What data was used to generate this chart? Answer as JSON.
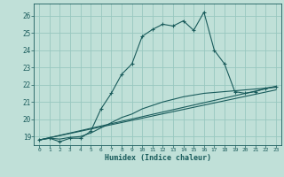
{
  "title": "",
  "xlabel": "Humidex (Indice chaleur)",
  "background_color": "#c0e0d8",
  "grid_color": "#98c8c0",
  "line_color": "#1a5c5c",
  "xlim": [
    -0.5,
    23.5
  ],
  "ylim": [
    18.5,
    26.7
  ],
  "yticks": [
    19,
    20,
    21,
    22,
    23,
    24,
    25,
    26
  ],
  "xticks": [
    0,
    1,
    2,
    3,
    4,
    5,
    6,
    7,
    8,
    9,
    10,
    11,
    12,
    13,
    14,
    15,
    16,
    17,
    18,
    19,
    20,
    21,
    22,
    23
  ],
  "line1_x": [
    0,
    1,
    2,
    3,
    4,
    5,
    6,
    7,
    8,
    9,
    10,
    11,
    12,
    13,
    14,
    15,
    16,
    17,
    18,
    19,
    20,
    21,
    22,
    23
  ],
  "line1_y": [
    18.8,
    18.9,
    18.7,
    18.9,
    18.9,
    19.3,
    20.6,
    21.5,
    22.6,
    23.2,
    24.8,
    25.2,
    25.5,
    25.4,
    25.7,
    25.15,
    26.2,
    24.0,
    23.2,
    21.6,
    21.5,
    21.6,
    21.8,
    21.9
  ],
  "line2_x": [
    0,
    23
  ],
  "line2_y": [
    18.8,
    21.9
  ],
  "line3_x": [
    0,
    23
  ],
  "line3_y": [
    18.8,
    21.7
  ],
  "line4_x": [
    0,
    1,
    2,
    3,
    4,
    5,
    6,
    7,
    8,
    9,
    10,
    11,
    12,
    13,
    14,
    15,
    16,
    17,
    18,
    19,
    20,
    21,
    22,
    23
  ],
  "line4_y": [
    18.8,
    18.9,
    18.85,
    18.95,
    19.0,
    19.2,
    19.5,
    19.8,
    20.1,
    20.3,
    20.6,
    20.8,
    21.0,
    21.15,
    21.3,
    21.4,
    21.5,
    21.55,
    21.6,
    21.65,
    21.7,
    21.75,
    21.8,
    21.85
  ]
}
